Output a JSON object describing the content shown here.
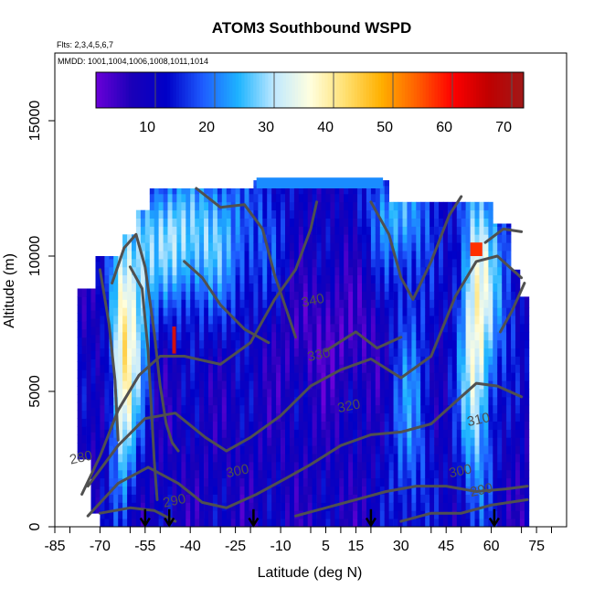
{
  "chart_data": {
    "type": "heatmap",
    "title": "ATOM3 Southbound WSPD",
    "annotations": [
      "Flts: 2,3,4,5,6,7",
      "MMDD: 1001,1004,1006,1008,1011,1014"
    ],
    "xlabel": "Latitude (deg N)",
    "ylabel": "Altitude (m)",
    "x_ticks": [
      -85,
      -70,
      -55,
      -40,
      -25,
      -10,
      5,
      15,
      30,
      45,
      60,
      75
    ],
    "xlim": [
      -85,
      85
    ],
    "y_ticks": [
      0,
      5000,
      10000,
      15000
    ],
    "ylim": [
      0,
      17500
    ],
    "colorbar": {
      "ticks": [
        10,
        20,
        30,
        40,
        50,
        60,
        70
      ],
      "range": [
        0,
        72
      ],
      "colors": [
        "#6a00d8",
        "#1a00b8",
        "#0000c8",
        "#1e5cff",
        "#1eb4ff",
        "#bfe8ff",
        "#ffffe0",
        "#ffe070",
        "#ffb000",
        "#ff6000",
        "#ff0000",
        "#c00000",
        "#a01818"
      ]
    },
    "contour_labels": [
      {
        "label": "340",
        "lat": 1,
        "alt": 8200
      },
      {
        "label": "330",
        "lat": 3,
        "alt": 6200
      },
      {
        "label": "320",
        "lat": 13,
        "alt": 4300
      },
      {
        "label": "310",
        "lat": 56,
        "alt": 3800
      },
      {
        "label": "300",
        "lat": -24,
        "alt": 1900
      },
      {
        "label": "300",
        "lat": 50,
        "alt": 1900
      },
      {
        "label": "290",
        "lat": -45,
        "alt": 800
      },
      {
        "label": "290",
        "lat": 57,
        "alt": 1200
      },
      {
        "label": "280",
        "lat": -76,
        "alt": 2400
      }
    ],
    "profile_arrows_lat": [
      -55,
      -47,
      -19,
      20,
      61
    ]
  }
}
